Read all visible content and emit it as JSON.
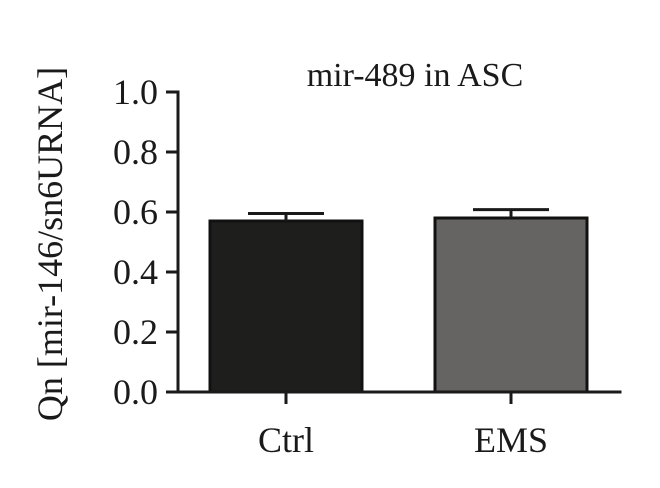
{
  "chart_data": {
    "type": "bar",
    "title": "mir-489 in ASC",
    "ylabel": "Qn [mir-146/sn6URNA]",
    "xlabel": "",
    "categories": [
      "Ctrl",
      "EMS"
    ],
    "values": [
      0.57,
      0.58
    ],
    "errors": [
      0.025,
      0.028
    ],
    "ylim": [
      0.0,
      1.0
    ],
    "yticks": [
      "0.0",
      "0.2",
      "0.4",
      "0.6",
      "0.8",
      "1.0"
    ],
    "bar_colors": [
      "#1e1e1c",
      "#666462"
    ],
    "grid": false,
    "legend": "none"
  }
}
